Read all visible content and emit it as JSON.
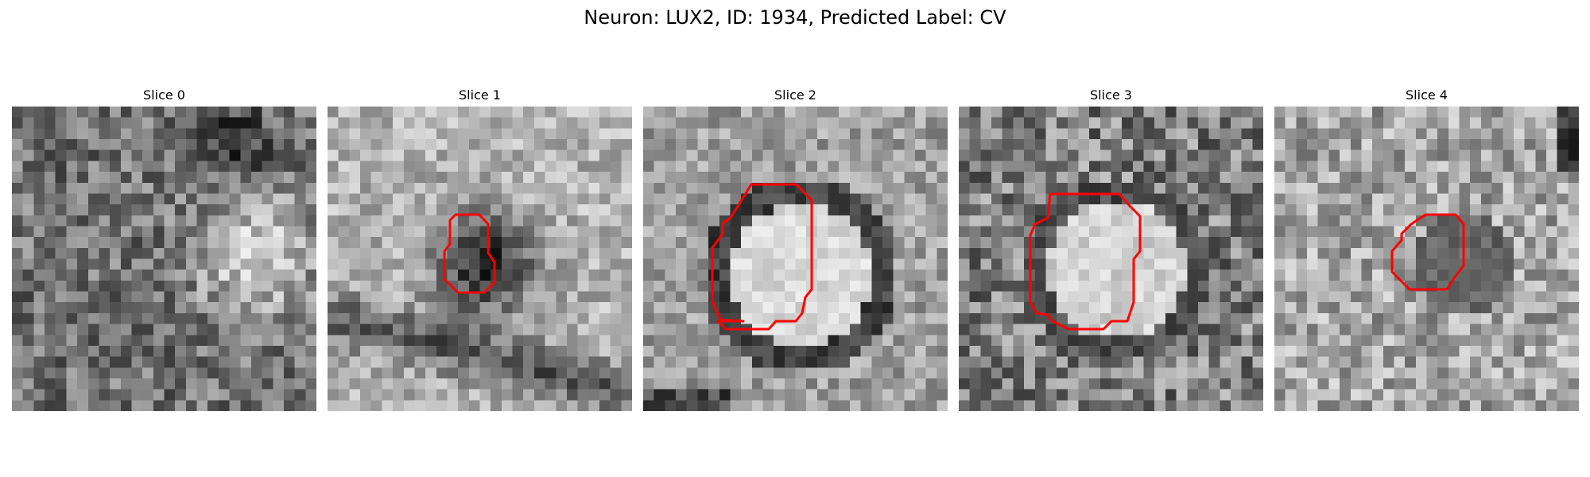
{
  "figure": {
    "title": "Neuron: LUX2, ID: 1934, Predicted Label: CV"
  },
  "contour_color": "#ff0000",
  "panels": [
    {
      "title": "Slice 0",
      "contour": false
    },
    {
      "title": "Slice 1",
      "contour": true
    },
    {
      "title": "Slice 2",
      "contour": true
    },
    {
      "title": "Slice 3",
      "contour": true
    },
    {
      "title": "Slice 4",
      "contour": true
    }
  ]
}
